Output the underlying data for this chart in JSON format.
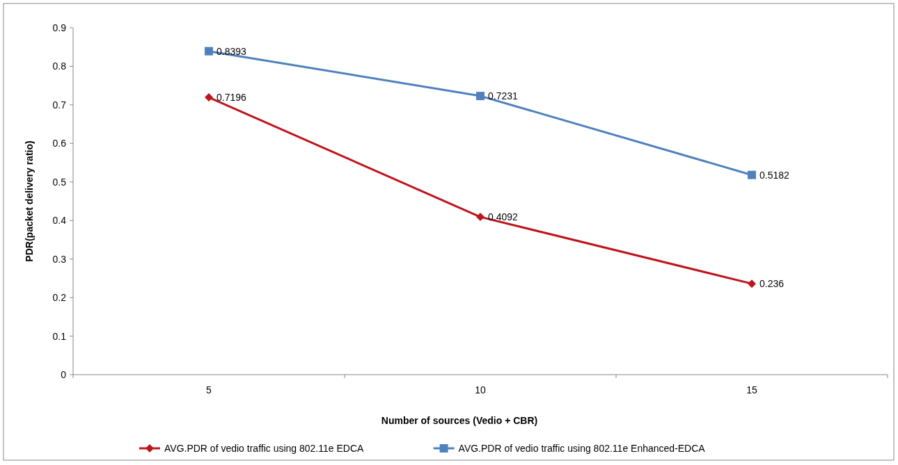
{
  "chart_data": {
    "type": "line",
    "xlabel": "Number of sources (Vedio + CBR)",
    "ylabel": "PDR(packet delivery ratio)",
    "categories": [
      "5",
      "10",
      "15"
    ],
    "series": [
      {
        "name": "AVG.PDR of vedio traffic using 802.11e EDCA",
        "color": "#c0141c",
        "marker": "diamond",
        "values": [
          0.7196,
          0.4092,
          0.236
        ]
      },
      {
        "name": "AVG.PDR of vedio traffic using 802.11e Enhanced-EDCA",
        "color": "#4f81bd",
        "marker": "square",
        "values": [
          0.8393,
          0.7231,
          0.5182
        ]
      }
    ],
    "ylim": [
      0,
      0.9
    ],
    "yticks": [
      0,
      0.1,
      0.2,
      0.3,
      0.4,
      0.5,
      0.6,
      0.7,
      0.8,
      0.9
    ],
    "grid": false,
    "legend": "bottom",
    "data_labels": true,
    "line_style": "solid"
  }
}
